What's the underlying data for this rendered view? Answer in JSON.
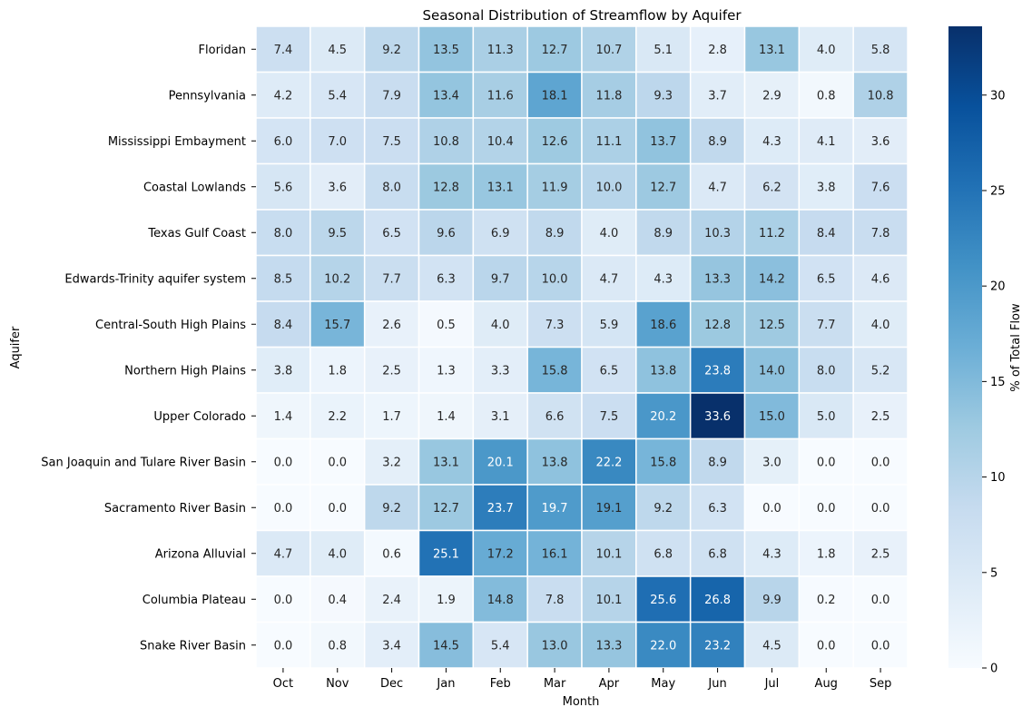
{
  "chart_data": {
    "type": "heatmap",
    "title": "Seasonal Distribution of Streamflow by Aquifer",
    "xlabel": "Month",
    "ylabel": "Aquifer",
    "colorbar_label": "% of Total Flow",
    "colorbar_range": [
      0,
      33.6
    ],
    "colorbar_ticks": [
      "0",
      "5",
      "10",
      "15",
      "20",
      "25",
      "30"
    ],
    "colormap": "Blues",
    "x": [
      "Oct",
      "Nov",
      "Dec",
      "Jan",
      "Feb",
      "Mar",
      "Apr",
      "May",
      "Jun",
      "Jul",
      "Aug",
      "Sep"
    ],
    "y": [
      "Floridan",
      "Pennsylvania",
      "Mississippi Embayment",
      "Coastal Lowlands",
      "Texas Gulf Coast",
      "Edwards-Trinity aquifer system",
      "Central-South High Plains",
      "Northern High Plains",
      "Upper Colorado",
      "San Joaquin and Tulare River Basin",
      "Sacramento River Basin",
      "Arizona Alluvial",
      "Columbia Plateau",
      "Snake River Basin"
    ],
    "values": [
      [
        7.4,
        4.5,
        9.2,
        13.5,
        11.3,
        12.7,
        10.7,
        5.1,
        2.8,
        13.1,
        4.0,
        5.8
      ],
      [
        4.2,
        5.4,
        7.9,
        13.4,
        11.6,
        18.1,
        11.8,
        9.3,
        3.7,
        2.9,
        0.8,
        10.8
      ],
      [
        6.0,
        7.0,
        7.5,
        10.8,
        10.4,
        12.6,
        11.1,
        13.7,
        8.9,
        4.3,
        4.1,
        3.6
      ],
      [
        5.6,
        3.6,
        8.0,
        12.8,
        13.1,
        11.9,
        10.0,
        12.7,
        4.7,
        6.2,
        3.8,
        7.6
      ],
      [
        8.0,
        9.5,
        6.5,
        9.6,
        6.9,
        8.9,
        4.0,
        8.9,
        10.3,
        11.2,
        8.4,
        7.8
      ],
      [
        8.5,
        10.2,
        7.7,
        6.3,
        9.7,
        10.0,
        4.7,
        4.3,
        13.3,
        14.2,
        6.5,
        4.6
      ],
      [
        8.4,
        15.7,
        2.6,
        0.5,
        4.0,
        7.3,
        5.9,
        18.6,
        12.8,
        12.5,
        7.7,
        4.0
      ],
      [
        3.8,
        1.8,
        2.5,
        1.3,
        3.3,
        15.8,
        6.5,
        13.8,
        23.8,
        14.0,
        8.0,
        5.2
      ],
      [
        1.4,
        2.2,
        1.7,
        1.4,
        3.1,
        6.6,
        7.5,
        20.2,
        33.6,
        15.0,
        5.0,
        2.5
      ],
      [
        0.0,
        0.0,
        3.2,
        13.1,
        20.1,
        13.8,
        22.2,
        15.8,
        8.9,
        3.0,
        0.0,
        0.0
      ],
      [
        0.0,
        0.0,
        9.2,
        12.7,
        23.7,
        19.7,
        19.1,
        9.2,
        6.3,
        0.0,
        0.0,
        0.0
      ],
      [
        4.7,
        4.0,
        0.6,
        25.1,
        17.2,
        16.1,
        10.1,
        6.8,
        6.8,
        4.3,
        1.8,
        2.5
      ],
      [
        0.0,
        0.4,
        2.4,
        1.9,
        14.8,
        7.8,
        10.1,
        25.6,
        26.8,
        9.9,
        0.2,
        0.0
      ],
      [
        0.0,
        0.8,
        3.4,
        14.5,
        5.4,
        13.0,
        13.3,
        22.0,
        23.2,
        4.5,
        0.0,
        0.0
      ]
    ]
  }
}
